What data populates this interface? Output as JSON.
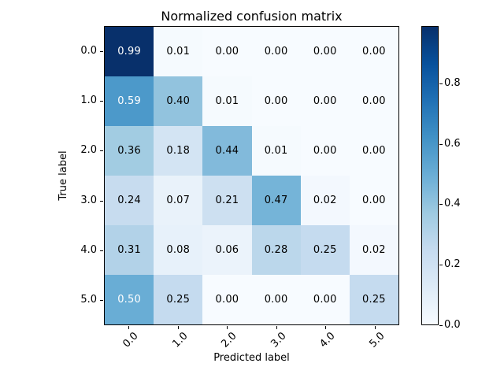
{
  "chart_data": {
    "type": "heatmap",
    "title": "Normalized confusion matrix",
    "xlabel": "Predicted label",
    "ylabel": "True label",
    "x_tick_labels": [
      "0.0",
      "1.0",
      "2.0",
      "3.0",
      "4.0",
      "5.0"
    ],
    "y_tick_labels": [
      "0.0",
      "1.0",
      "2.0",
      "3.0",
      "4.0",
      "5.0"
    ],
    "matrix": [
      [
        0.99,
        0.01,
        0.0,
        0.0,
        0.0,
        0.0
      ],
      [
        0.59,
        0.4,
        0.01,
        0.0,
        0.0,
        0.0
      ],
      [
        0.36,
        0.18,
        0.44,
        0.01,
        0.0,
        0.0
      ],
      [
        0.24,
        0.07,
        0.21,
        0.47,
        0.02,
        0.0
      ],
      [
        0.31,
        0.08,
        0.06,
        0.28,
        0.25,
        0.02
      ],
      [
        0.5,
        0.25,
        0.0,
        0.0,
        0.0,
        0.25
      ]
    ],
    "value_format_decimals": 2,
    "vmin": 0.0,
    "colormap": "Blues",
    "colormap_stops": [
      [
        0.0,
        "#f7fbff"
      ],
      [
        0.125,
        "#deebf7"
      ],
      [
        0.25,
        "#c6dbef"
      ],
      [
        0.375,
        "#9ecae1"
      ],
      [
        0.5,
        "#6baed6"
      ],
      [
        0.625,
        "#4292c6"
      ],
      [
        0.75,
        "#2171b5"
      ],
      [
        0.875,
        "#08519c"
      ],
      [
        1.0,
        "#08306b"
      ]
    ],
    "colorbar_tick_values": [
      0.0,
      0.2,
      0.4,
      0.6,
      0.8
    ],
    "x_tick_rotation_deg": 45,
    "cell_text_color_dark": "#000000",
    "cell_text_color_light": "#ffffff",
    "spine_color": "#000000",
    "background_color": "#ffffff",
    "legend": "colorbar-right",
    "grid": "off"
  }
}
